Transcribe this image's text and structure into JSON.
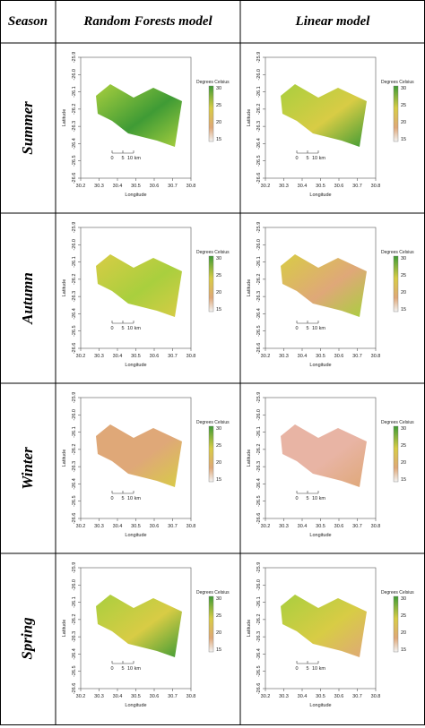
{
  "table": {
    "headers": {
      "season": "Season",
      "rf": "Random Forests model",
      "linear": "Linear model"
    },
    "rows": [
      {
        "season": "Summer"
      },
      {
        "season": "Autumn"
      },
      {
        "season": "Winter"
      },
      {
        "season": "Spring"
      }
    ]
  },
  "map": {
    "ylabel": "Latitude",
    "xlabel": "Longitude",
    "xticks": [
      "30.2",
      "30.3",
      "30.4",
      "30.5",
      "30.6",
      "30.7",
      "30.8"
    ],
    "yticks": [
      "-25.9",
      "-26.0",
      "-26.1",
      "-26.2",
      "-26.3",
      "-26.4",
      "-26.5",
      "-26.6"
    ],
    "legend_title": "Degrees Celsius",
    "legend_ticks": [
      "30",
      "25",
      "20",
      "15"
    ],
    "scalebar_labels": [
      "0",
      "5",
      "10 km"
    ]
  },
  "colors": {
    "green_dark": "#3f9b35",
    "green_light": "#a9cf3e",
    "yellow": "#d8cc45",
    "tan": "#dfa878",
    "pink": "#e8b4a4"
  }
}
